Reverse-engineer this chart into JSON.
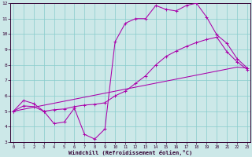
{
  "bg_color": "#cce8e8",
  "grid_color": "#88cccc",
  "line_color": "#aa00aa",
  "xlim": [
    0,
    23
  ],
  "ylim": [
    3,
    12
  ],
  "xticks": [
    0,
    1,
    2,
    3,
    4,
    5,
    6,
    7,
    8,
    9,
    10,
    11,
    12,
    13,
    14,
    15,
    16,
    17,
    18,
    19,
    20,
    21,
    22,
    23
  ],
  "yticks": [
    3,
    4,
    5,
    6,
    7,
    8,
    9,
    10,
    11,
    12
  ],
  "xlabel": "Windchill (Refroidissement éolien,°C)",
  "curve_top_x": [
    0,
    1,
    2,
    3,
    4,
    5,
    6,
    7,
    8,
    9,
    10,
    11,
    12,
    13,
    14,
    15,
    16,
    17,
    18,
    19,
    20,
    21,
    22,
    23
  ],
  "curve_top_y": [
    5.0,
    5.7,
    5.5,
    5.0,
    4.2,
    4.3,
    5.2,
    3.5,
    3.2,
    3.85,
    9.5,
    10.7,
    11.0,
    11.0,
    11.85,
    11.6,
    11.5,
    11.85,
    12.0,
    11.1,
    9.95,
    9.4,
    8.4,
    7.8
  ],
  "curve_mid_x": [
    0,
    1,
    2,
    3,
    4,
    5,
    6,
    7,
    8,
    9,
    10,
    11,
    12,
    13,
    14,
    15,
    16,
    17,
    18,
    19,
    20,
    21,
    22,
    23
  ],
  "curve_mid_y": [
    5.0,
    5.35,
    5.3,
    5.0,
    5.1,
    5.15,
    5.3,
    5.4,
    5.45,
    5.55,
    6.0,
    6.3,
    6.8,
    7.3,
    8.0,
    8.55,
    8.9,
    9.2,
    9.45,
    9.65,
    9.8,
    8.85,
    8.2,
    7.7
  ],
  "curve_diag_x": [
    0,
    1,
    2,
    3,
    4,
    5,
    6,
    7,
    8,
    9,
    10,
    11,
    12,
    13,
    14,
    15,
    16,
    17,
    18,
    19,
    20,
    21,
    22,
    23
  ],
  "curve_diag_y": [
    5.0,
    5.13,
    5.26,
    5.39,
    5.52,
    5.65,
    5.78,
    5.91,
    6.04,
    6.17,
    6.3,
    6.43,
    6.56,
    6.69,
    6.82,
    6.95,
    7.08,
    7.21,
    7.34,
    7.47,
    7.6,
    7.73,
    7.86,
    7.8
  ]
}
